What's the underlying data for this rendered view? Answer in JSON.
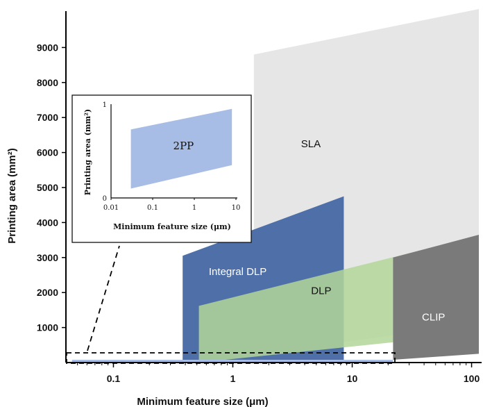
{
  "chart_data": {
    "type": "area",
    "xlabel": "Minimum feature size (μm)",
    "ylabel": "Printing area (mm²)",
    "x_scale": "log",
    "x_ticks": [
      "0.1",
      "1",
      "10",
      "100"
    ],
    "x_tick_values": [
      0.1,
      1,
      10,
      100
    ],
    "y_ticks": [
      "1000",
      "2000",
      "3000",
      "4000",
      "5000",
      "6000",
      "7000",
      "8000",
      "9000"
    ],
    "y_tick_values": [
      1000,
      2000,
      3000,
      4000,
      5000,
      6000,
      7000,
      8000,
      9000
    ],
    "xlim": [
      0.04,
      115
    ],
    "ylim": [
      0,
      10000
    ],
    "grid": false,
    "regions": [
      {
        "name": "SLA",
        "color": "#e6e6e6",
        "polygon": [
          [
            1.5,
            250
          ],
          [
            115,
            1100
          ],
          [
            115,
            10100
          ],
          [
            1.5,
            8800
          ]
        ]
      },
      {
        "name": "Integral DLP",
        "color": "#4e6fa8",
        "polygon": [
          [
            0.38,
            0
          ],
          [
            8.5,
            0
          ],
          [
            8.5,
            4750
          ],
          [
            0.38,
            3050
          ]
        ]
      },
      {
        "name": "DLP",
        "color": "#b3d699",
        "polygon": [
          [
            0.52,
            0
          ],
          [
            48,
            700
          ],
          [
            48,
            3300
          ],
          [
            0.52,
            1620
          ]
        ]
      },
      {
        "name": "CLIP",
        "color": "#7a7a7a",
        "polygon": [
          [
            22,
            80
          ],
          [
            115,
            250
          ],
          [
            115,
            3650
          ],
          [
            22,
            3000
          ]
        ]
      },
      {
        "name": "2PP",
        "color": "#a7bde6",
        "polygon": [
          [
            0.045,
            0
          ],
          [
            22,
            0
          ],
          [
            22,
            80
          ],
          [
            0.045,
            80
          ]
        ]
      }
    ],
    "inset": {
      "title_x": "Minimum feature size (μm)",
      "title_y": "Printing area (mm²)",
      "x_ticks": [
        "0.01",
        "0.1",
        "1",
        "10"
      ],
      "x_tick_values": [
        0.01,
        0.1,
        1,
        10
      ],
      "y_ticks": [
        "0",
        "1"
      ],
      "y_tick_values": [
        0,
        1
      ],
      "region": {
        "name": "2PP",
        "color": "#a7bde6",
        "polygon": [
          [
            0.03,
            0.1
          ],
          [
            8,
            0.35
          ],
          [
            8,
            0.95
          ],
          [
            0.03,
            0.73
          ]
        ]
      }
    }
  }
}
